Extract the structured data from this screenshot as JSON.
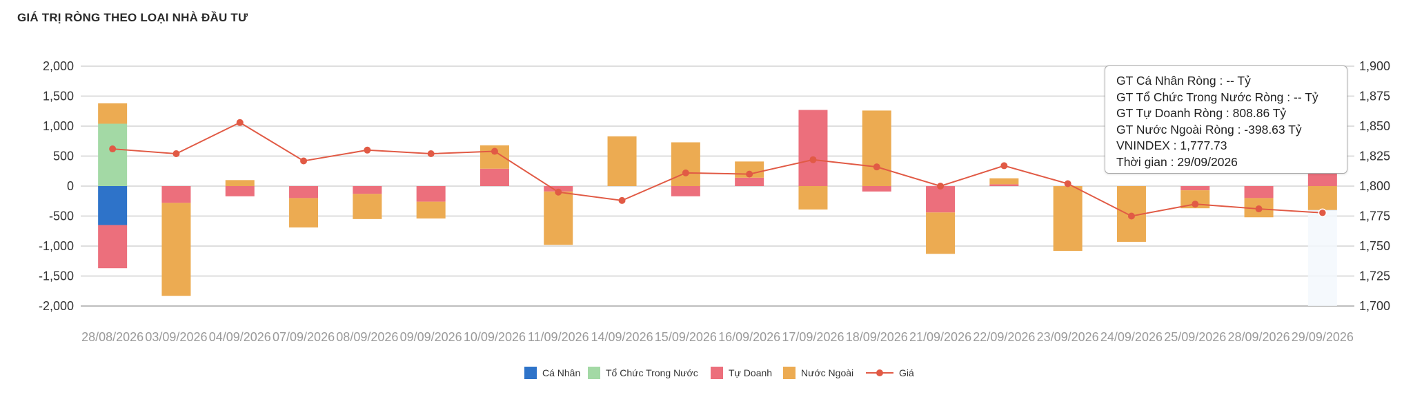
{
  "title": "GIÁ TRỊ RÒNG THEO LOẠI NHÀ ĐẦU TƯ",
  "chart_data": {
    "type": "bar",
    "stacked": true,
    "categories": [
      "28/08/2026",
      "03/09/2026",
      "04/09/2026",
      "07/09/2026",
      "08/09/2026",
      "09/09/2026",
      "10/09/2026",
      "11/09/2026",
      "14/09/2026",
      "15/09/2026",
      "16/09/2026",
      "17/09/2026",
      "18/09/2026",
      "21/09/2026",
      "22/09/2026",
      "23/09/2026",
      "24/09/2026",
      "25/09/2026",
      "28/09/2026",
      "29/09/2026"
    ],
    "series": [
      {
        "name": "Cá Nhân",
        "type": "bar",
        "axis": "left",
        "color": "#2e73c9",
        "values": [
          -650,
          0,
          0,
          0,
          0,
          0,
          0,
          0,
          0,
          0,
          0,
          0,
          0,
          0,
          0,
          0,
          0,
          0,
          0,
          0
        ]
      },
      {
        "name": "Tổ Chức Trong Nước",
        "type": "bar",
        "axis": "left",
        "color": "#a3d9a5",
        "values": [
          1040,
          0,
          0,
          0,
          0,
          0,
          0,
          0,
          0,
          0,
          0,
          0,
          0,
          0,
          0,
          0,
          0,
          0,
          0,
          0
        ]
      },
      {
        "name": "Tự Doanh",
        "type": "bar",
        "axis": "left",
        "color": "#ec6f7c",
        "values": [
          -720,
          -280,
          -170,
          -200,
          -130,
          -260,
          290,
          -90,
          0,
          -170,
          140,
          1270,
          -90,
          -440,
          30,
          0,
          0,
          -70,
          -200,
          808.86
        ]
      },
      {
        "name": "Nước Ngoài",
        "type": "bar",
        "axis": "left",
        "color": "#ecab52",
        "values": [
          340,
          -1550,
          100,
          -490,
          -420,
          -280,
          390,
          -890,
          830,
          730,
          270,
          -390,
          1260,
          -690,
          100,
          -1080,
          -930,
          -300,
          -320,
          -398.63
        ]
      },
      {
        "name": "Giá",
        "type": "line",
        "axis": "right",
        "color": "#e15a45",
        "values": [
          1831,
          1827,
          1853,
          1821,
          1830,
          1827,
          1829,
          1795,
          1788,
          1811,
          1810,
          1822,
          1816,
          1800,
          1817,
          1802,
          1775,
          1785,
          1781,
          1777.73
        ]
      }
    ],
    "ylim_left": [
      -2000,
      2000
    ],
    "yticks_left": [
      "2,000",
      "1,500",
      "1,000",
      "500",
      "0",
      "-500",
      "-1,000",
      "-1,500",
      "-2,000"
    ],
    "ylim_right": [
      1700,
      1900
    ],
    "yticks_right": [
      "1,900",
      "1,875",
      "1,850",
      "1,825",
      "1,800",
      "1,775",
      "1,750",
      "1,725",
      "1,700"
    ],
    "grid": true,
    "legend_position": "bottom",
    "highlighted_category": "29/09/2026"
  },
  "tooltip": {
    "lines": [
      "GT Cá Nhân Ròng  : -- Tỷ",
      "GT Tổ Chức Trong Nước Ròng : -- Tỷ",
      "GT Tự Doanh Ròng : 808.86 Tỷ",
      "GT Nước Ngoài Ròng : -398.63 Tỷ",
      "VNINDEX : 1,777.73",
      "Thời gian : 29/09/2026"
    ]
  },
  "legend": [
    {
      "label": "Cá Nhân",
      "color": "#2e73c9",
      "kind": "box"
    },
    {
      "label": "Tổ Chức Trong Nước",
      "color": "#a3d9a5",
      "kind": "box"
    },
    {
      "label": "Tự Doanh",
      "color": "#ec6f7c",
      "kind": "box"
    },
    {
      "label": "Nước Ngoài",
      "color": "#ecab52",
      "kind": "box"
    },
    {
      "label": "Giá",
      "color": "#e15a45",
      "kind": "line"
    }
  ]
}
